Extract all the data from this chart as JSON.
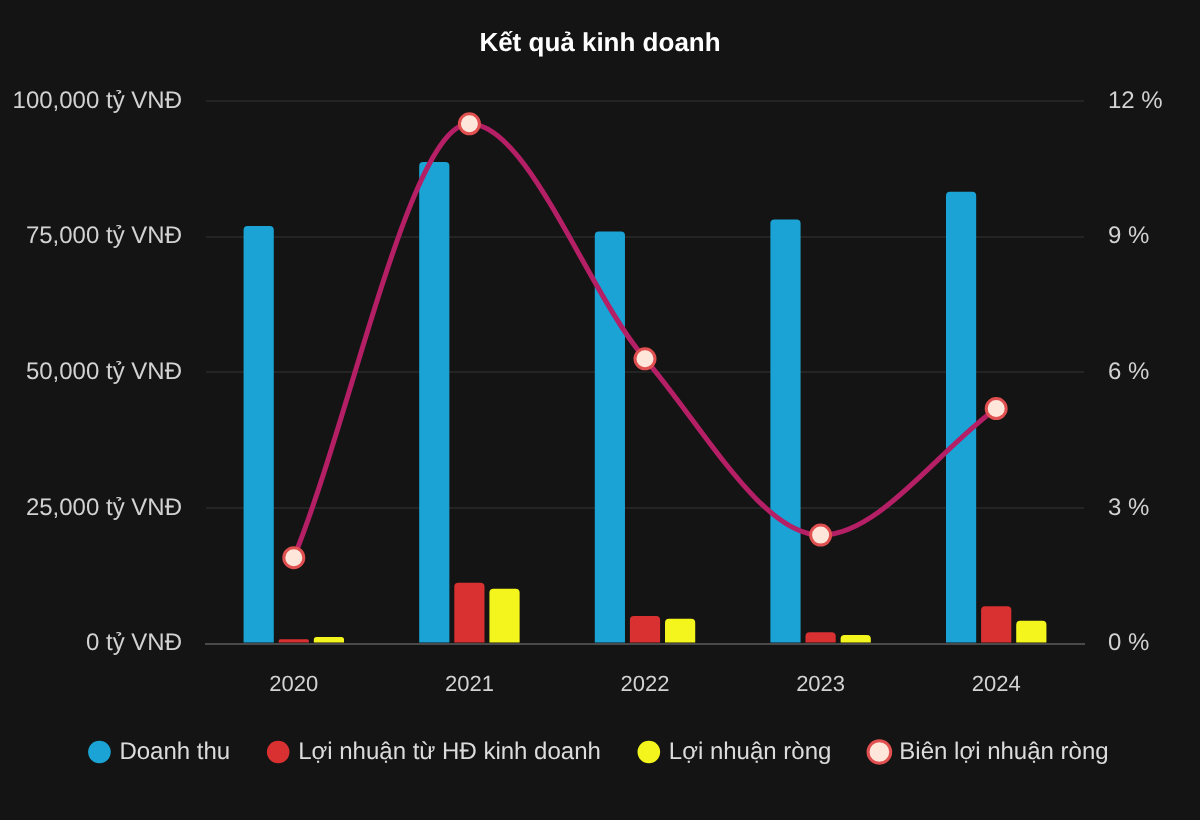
{
  "chart_data": {
    "type": "bar",
    "title": "Kết quả kinh doanh",
    "categories": [
      "2020",
      "2021",
      "2022",
      "2023",
      "2024"
    ],
    "series": [
      {
        "name": "Doanh thu",
        "color": "#1aa3d4",
        "values": [
          77000,
          88800,
          76000,
          78200,
          83300
        ]
      },
      {
        "name": "Lợi nhuận từ HĐ kinh doanh",
        "color": "#d93131",
        "values": [
          800,
          11200,
          5100,
          2100,
          6900
        ]
      },
      {
        "name": "Lợi nhuận ròng",
        "color": "#f5f51e",
        "values": [
          1200,
          10100,
          4600,
          1600,
          4200
        ]
      },
      {
        "name": "Biên lợi nhuận ròng",
        "type": "line",
        "axis": "y2",
        "color": "#b51f66",
        "values": [
          1.9,
          11.5,
          6.3,
          2.4,
          5.2
        ]
      }
    ],
    "ylim": [
      0,
      100000
    ],
    "yticks": [
      {
        "value": 0,
        "label": "0 tỷ VNĐ"
      },
      {
        "value": 25000,
        "label": "25,000 tỷ VNĐ"
      },
      {
        "value": 50000,
        "label": "50,000 tỷ VNĐ"
      },
      {
        "value": 75000,
        "label": "75,000 tỷ VNĐ"
      },
      {
        "value": 100000,
        "label": "100,000 tỷ VNĐ"
      }
    ],
    "y2lim": [
      0,
      12
    ],
    "y2ticks": [
      {
        "value": 0,
        "label": "0 %"
      },
      {
        "value": 3,
        "label": "3 %"
      },
      {
        "value": 6,
        "label": "6 %"
      },
      {
        "value": 9,
        "label": "9 %"
      },
      {
        "value": 12,
        "label": "12 %"
      }
    ],
    "grid": "y",
    "legend": "bottom",
    "marker": "circle",
    "line_style": "solid"
  }
}
